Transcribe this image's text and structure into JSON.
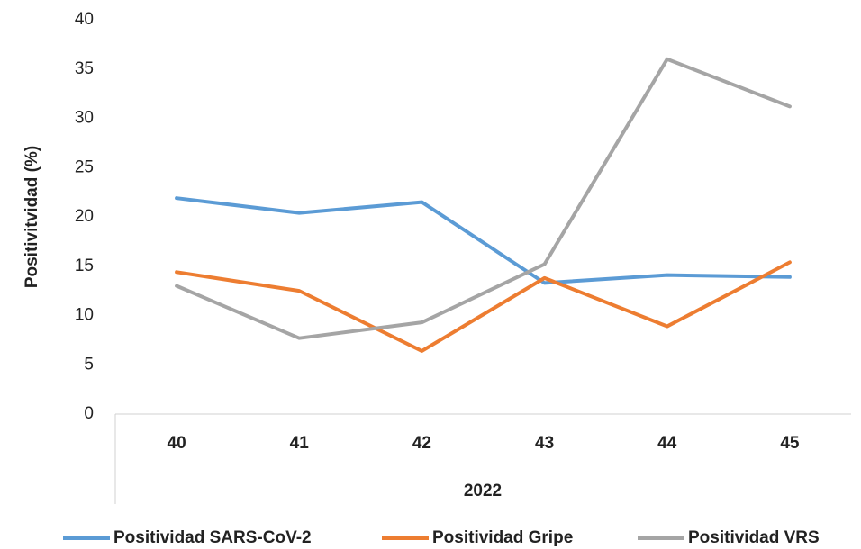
{
  "chart_data": {
    "type": "line",
    "y_label": "Positivitvidad (%)",
    "categories": [
      "40",
      "41",
      "42",
      "43",
      "44",
      "45"
    ],
    "category_group": "2022",
    "series": [
      {
        "name": "Positividad SARS-CoV-2",
        "color": "#5b9bd5",
        "values": [
          21.9,
          20.4,
          21.5,
          13.3,
          14.1,
          13.9
        ]
      },
      {
        "name": "Positividad Gripe",
        "color": "#ed7d31",
        "values": [
          14.4,
          12.5,
          6.4,
          13.8,
          8.9,
          15.4
        ]
      },
      {
        "name": "Positividad VRS",
        "color": "#a5a5a5",
        "values": [
          13.0,
          7.7,
          9.3,
          15.2,
          36.0,
          31.2
        ]
      }
    ],
    "ylim": [
      0,
      40
    ],
    "yticks": [
      0,
      5,
      10,
      15,
      20,
      25,
      30,
      35,
      40
    ],
    "grid": false
  }
}
